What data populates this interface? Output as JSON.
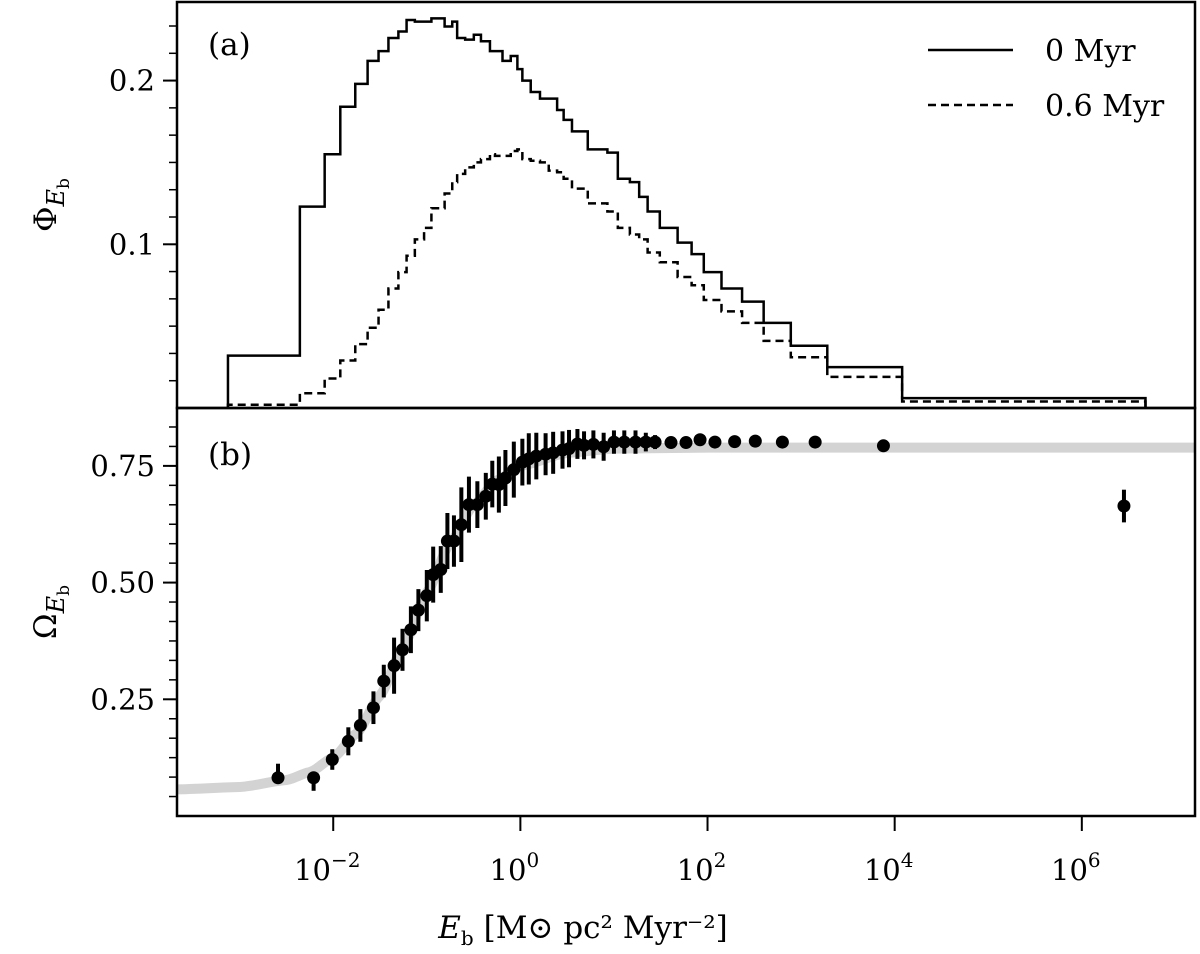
{
  "chart_data": [
    {
      "panel_label": "(a)",
      "type": "line",
      "style": "step-histogram",
      "xscale": "log",
      "xlim": [
        0.000214,
        16200000
      ],
      "ylim": [
        0,
        0.248
      ],
      "ylabel": {
        "symbol": "Φ",
        "sub": "E",
        "subsub": "b"
      },
      "yticks": [
        {
          "value": 0.1,
          "label": "0.1"
        },
        {
          "value": 0.2,
          "label": "0.2"
        }
      ],
      "legend": {
        "placement": "top-right"
      },
      "bin_edges": [
        0.00075,
        0.0044,
        0.0081,
        0.0119,
        0.0172,
        0.0233,
        0.0305,
        0.0389,
        0.0497,
        0.0608,
        0.0745,
        0.0935,
        0.112,
        0.155,
        0.187,
        0.211,
        0.257,
        0.318,
        0.379,
        0.473,
        0.535,
        0.644,
        0.789,
        0.929,
        1.05,
        1.29,
        1.62,
        2.01,
        2.47,
        2.9,
        3.56,
        5.25,
        8.51,
        11.0,
        14.8,
        18.6,
        22.9,
        30.9,
        47.9,
        67.6,
        91.2,
        141,
        234,
        398,
        776,
        1905,
        12020,
        4790000
      ],
      "series": [
        {
          "name": "0 Myr",
          "line": "solid",
          "values": [
            0.032,
            0.123,
            0.155,
            0.184,
            0.198,
            0.212,
            0.218,
            0.226,
            0.23,
            0.237,
            0.236,
            0.236,
            0.238,
            0.233,
            0.236,
            0.226,
            0.225,
            0.228,
            0.224,
            0.218,
            0.218,
            0.212,
            0.215,
            0.207,
            0.2,
            0.193,
            0.189,
            0.189,
            0.182,
            0.176,
            0.169,
            0.158,
            0.156,
            0.14,
            0.138,
            0.129,
            0.12,
            0.11,
            0.101,
            0.094,
            0.083,
            0.073,
            0.065,
            0.052,
            0.038,
            0.025,
            0.006
          ]
        },
        {
          "name": "0.6 Myr",
          "line": "dashed",
          "values": [
            0.002,
            0.009,
            0.018,
            0.029,
            0.039,
            0.049,
            0.06,
            0.073,
            0.083,
            0.093,
            0.103,
            0.11,
            0.122,
            0.131,
            0.138,
            0.143,
            0.147,
            0.15,
            0.152,
            0.155,
            0.154,
            0.154,
            0.157,
            0.158,
            0.152,
            0.151,
            0.15,
            0.145,
            0.144,
            0.14,
            0.134,
            0.125,
            0.12,
            0.11,
            0.106,
            0.103,
            0.095,
            0.089,
            0.08,
            0.075,
            0.066,
            0.059,
            0.052,
            0.041,
            0.031,
            0.019,
            0.004
          ]
        }
      ]
    },
    {
      "panel_label": "(b)",
      "type": "scatter",
      "xscale": "log",
      "xlim": [
        0.000214,
        16200000
      ],
      "ylim": [
        0,
        0.874
      ],
      "ylabel": {
        "symbol": "Ω",
        "sub": "E",
        "subsub": "b"
      },
      "yticks": [
        {
          "value": 0.25,
          "label": "0.25"
        },
        {
          "value": 0.5,
          "label": "0.50"
        },
        {
          "value": 0.75,
          "label": "0.75"
        }
      ],
      "points": {
        "x": [
          0.00257,
          0.00617,
          0.00977,
          0.0145,
          0.0195,
          0.0269,
          0.0347,
          0.0447,
          0.055,
          0.0676,
          0.0813,
          0.1,
          0.117,
          0.141,
          0.166,
          0.195,
          0.234,
          0.282,
          0.347,
          0.427,
          0.501,
          0.589,
          0.692,
          0.851,
          1.05,
          1.23,
          1.48,
          1.86,
          2.24,
          2.82,
          3.31,
          4.07,
          4.79,
          6.03,
          7.76,
          10.0,
          12.9,
          17.0,
          21.9,
          27.5,
          40.7,
          58.9,
          83.2,
          120,
          195,
          324,
          631,
          1413,
          7586,
          2820000
        ],
        "y": [
          0.082,
          0.082,
          0.121,
          0.16,
          0.194,
          0.232,
          0.289,
          0.322,
          0.356,
          0.399,
          0.441,
          0.472,
          0.517,
          0.528,
          0.589,
          0.589,
          0.624,
          0.667,
          0.667,
          0.685,
          0.711,
          0.71,
          0.724,
          0.742,
          0.758,
          0.765,
          0.771,
          0.775,
          0.778,
          0.784,
          0.787,
          0.797,
          0.794,
          0.796,
          0.791,
          0.801,
          0.801,
          0.801,
          0.801,
          0.801,
          0.8,
          0.8,
          0.806,
          0.801,
          0.802,
          0.803,
          0.801,
          0.801,
          0.793,
          0.664
        ],
        "err_low": [
          0.005,
          0.028,
          0.022,
          0.03,
          0.035,
          0.035,
          0.035,
          0.06,
          0.045,
          0.05,
          0.045,
          0.055,
          0.06,
          0.05,
          0.06,
          0.055,
          0.08,
          0.06,
          0.05,
          0.05,
          0.05,
          0.06,
          0.06,
          0.06,
          0.05,
          0.055,
          0.05,
          0.045,
          0.045,
          0.04,
          0.04,
          0.032,
          0.03,
          0.03,
          0.03,
          0.025,
          0.025,
          0.025,
          0.02,
          0.015,
          0.012,
          0.012,
          0.012,
          0.012,
          0.012,
          0.012,
          0.01,
          0.01,
          0.012,
          0.035
        ],
        "err_high": [
          0.03,
          0.005,
          0.022,
          0.03,
          0.035,
          0.035,
          0.035,
          0.06,
          0.045,
          0.05,
          0.045,
          0.055,
          0.06,
          0.05,
          0.06,
          0.055,
          0.08,
          0.06,
          0.05,
          0.05,
          0.05,
          0.06,
          0.06,
          0.06,
          0.05,
          0.055,
          0.05,
          0.045,
          0.045,
          0.04,
          0.04,
          0.032,
          0.03,
          0.03,
          0.03,
          0.025,
          0.025,
          0.025,
          0.02,
          0.015,
          0.012,
          0.012,
          0.012,
          0.012,
          0.012,
          0.012,
          0.01,
          0.01,
          0.012,
          0.035
        ],
        "color": "#000000"
      },
      "fit_curve": {
        "color": "#d3d3d3",
        "x": [
          0.000214,
          0.001,
          0.00316,
          0.00562,
          0.01,
          0.0178,
          0.0316,
          0.0562,
          0.1,
          0.178,
          0.316,
          0.562,
          1,
          3.16,
          10,
          100,
          16200000
        ],
        "y": [
          0.057,
          0.062,
          0.077,
          0.094,
          0.125,
          0.177,
          0.258,
          0.363,
          0.479,
          0.585,
          0.666,
          0.719,
          0.75,
          0.778,
          0.787,
          0.789,
          0.789
        ]
      }
    }
  ],
  "x_axis": {
    "label": {
      "symbol": "E",
      "sub": "b",
      "units": "[M⊙ pc² Myr⁻²]"
    },
    "ticks": [
      {
        "value": 0.01,
        "base": "10",
        "exp": "−2"
      },
      {
        "value": 1,
        "base": "10",
        "exp": "0"
      },
      {
        "value": 100,
        "base": "10",
        "exp": "2"
      },
      {
        "value": 10000,
        "base": "10",
        "exp": "4"
      },
      {
        "value": 1000000,
        "base": "10",
        "exp": "6"
      }
    ]
  }
}
